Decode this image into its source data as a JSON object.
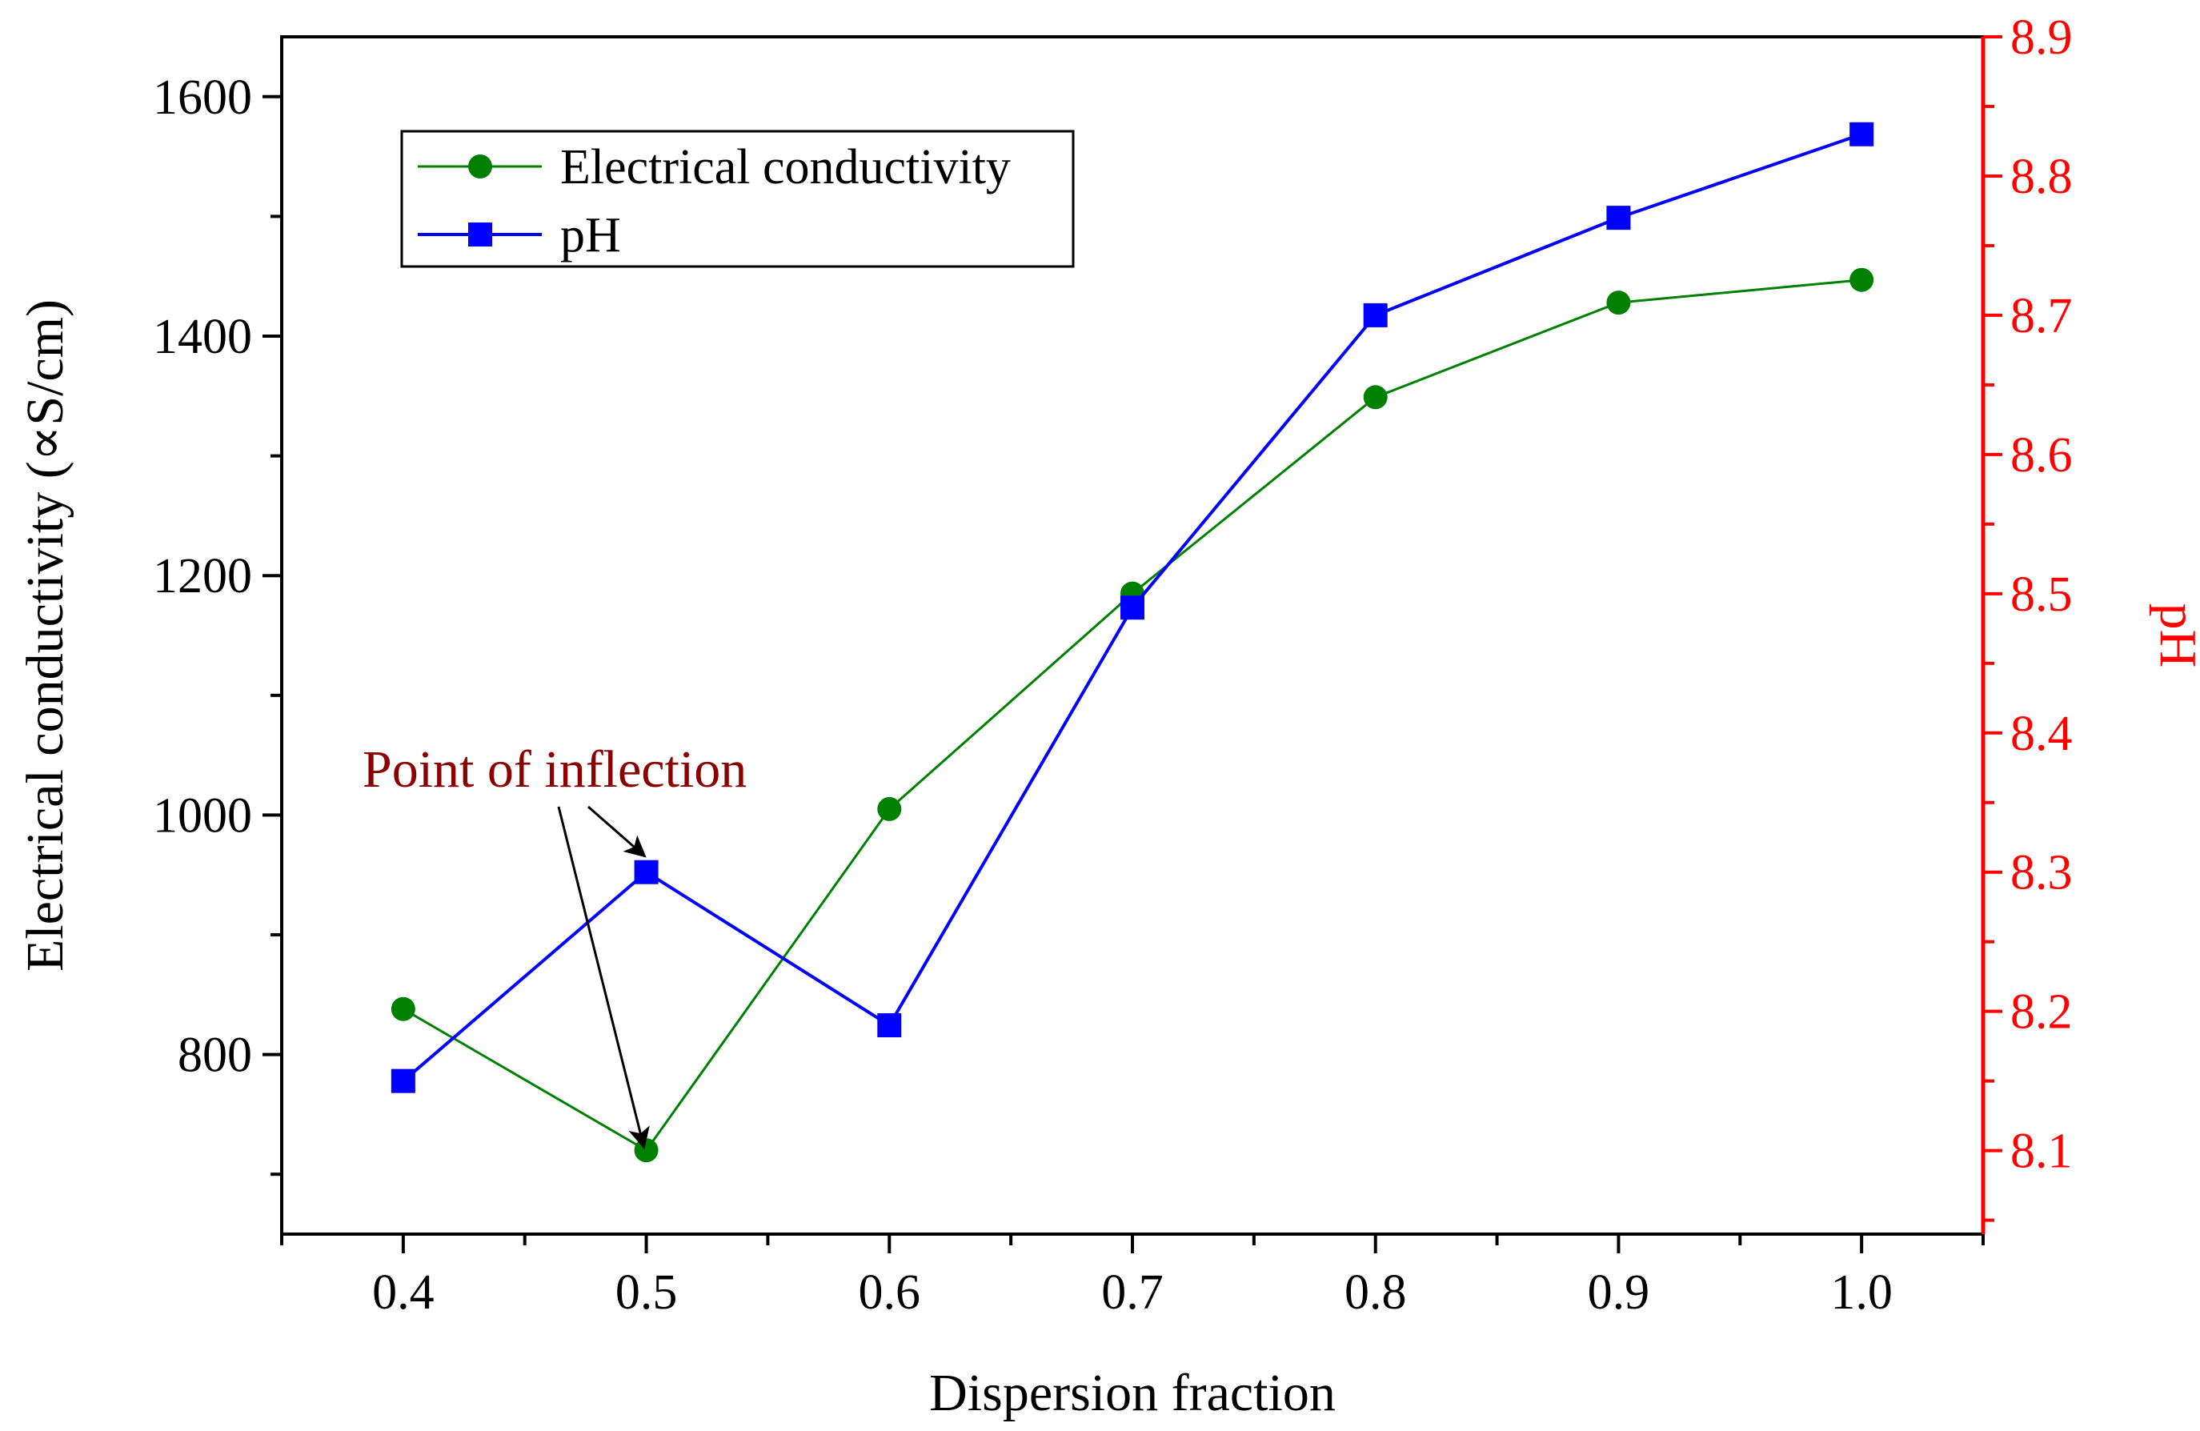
{
  "colors": {
    "ec": "#008000",
    "ph": "#0000ff",
    "ph_axis": "#ff0000",
    "annotation": "#8b0000",
    "axis": "#000000"
  },
  "chart_data": {
    "type": "line",
    "title": "",
    "xlabel": "Dispersion fraction",
    "ylabel": "Electrical conductivity (∝S/cm)",
    "y2label": "pH",
    "xlim": [
      0.35,
      1.05
    ],
    "ylim": [
      650,
      1650
    ],
    "y2lim": [
      8.04,
      8.9
    ],
    "x_ticks": [
      0.4,
      0.5,
      0.6,
      0.7,
      0.8,
      0.9,
      1.0
    ],
    "x_tick_labels": [
      "0.4",
      "0.5",
      "0.6",
      "0.7",
      "0.8",
      "0.9",
      "1.0"
    ],
    "y_ticks": [
      800,
      1000,
      1200,
      1400,
      1600
    ],
    "y_tick_labels": [
      "800",
      "1000",
      "1200",
      "1400",
      "1600"
    ],
    "y2_ticks": [
      8.1,
      8.2,
      8.3,
      8.4,
      8.5,
      8.6,
      8.7,
      8.8,
      8.9
    ],
    "y2_tick_labels": [
      "8.1",
      "8.2",
      "8.3",
      "8.4",
      "8.5",
      "8.6",
      "8.7",
      "8.8",
      "8.9"
    ],
    "legend_position": "top-left",
    "series": [
      {
        "name": "Electrical conductivity",
        "axis": "left",
        "marker": "circle",
        "x": [
          0.4,
          0.5,
          0.6,
          0.7,
          0.8,
          0.9,
          1.0
        ],
        "values": [
          838,
          720,
          1005,
          1185,
          1349,
          1428,
          1447
        ]
      },
      {
        "name": "pH",
        "axis": "right",
        "marker": "square",
        "x": [
          0.4,
          0.5,
          0.6,
          0.7,
          0.8,
          0.9,
          1.0
        ],
        "values": [
          8.15,
          8.3,
          8.19,
          8.49,
          8.7,
          8.77,
          8.83
        ]
      }
    ],
    "annotations": [
      {
        "text": "Point of inflection",
        "targets": [
          {
            "series": "Electrical conductivity",
            "x": 0.5
          },
          {
            "series": "pH",
            "x": 0.5
          }
        ]
      }
    ]
  }
}
